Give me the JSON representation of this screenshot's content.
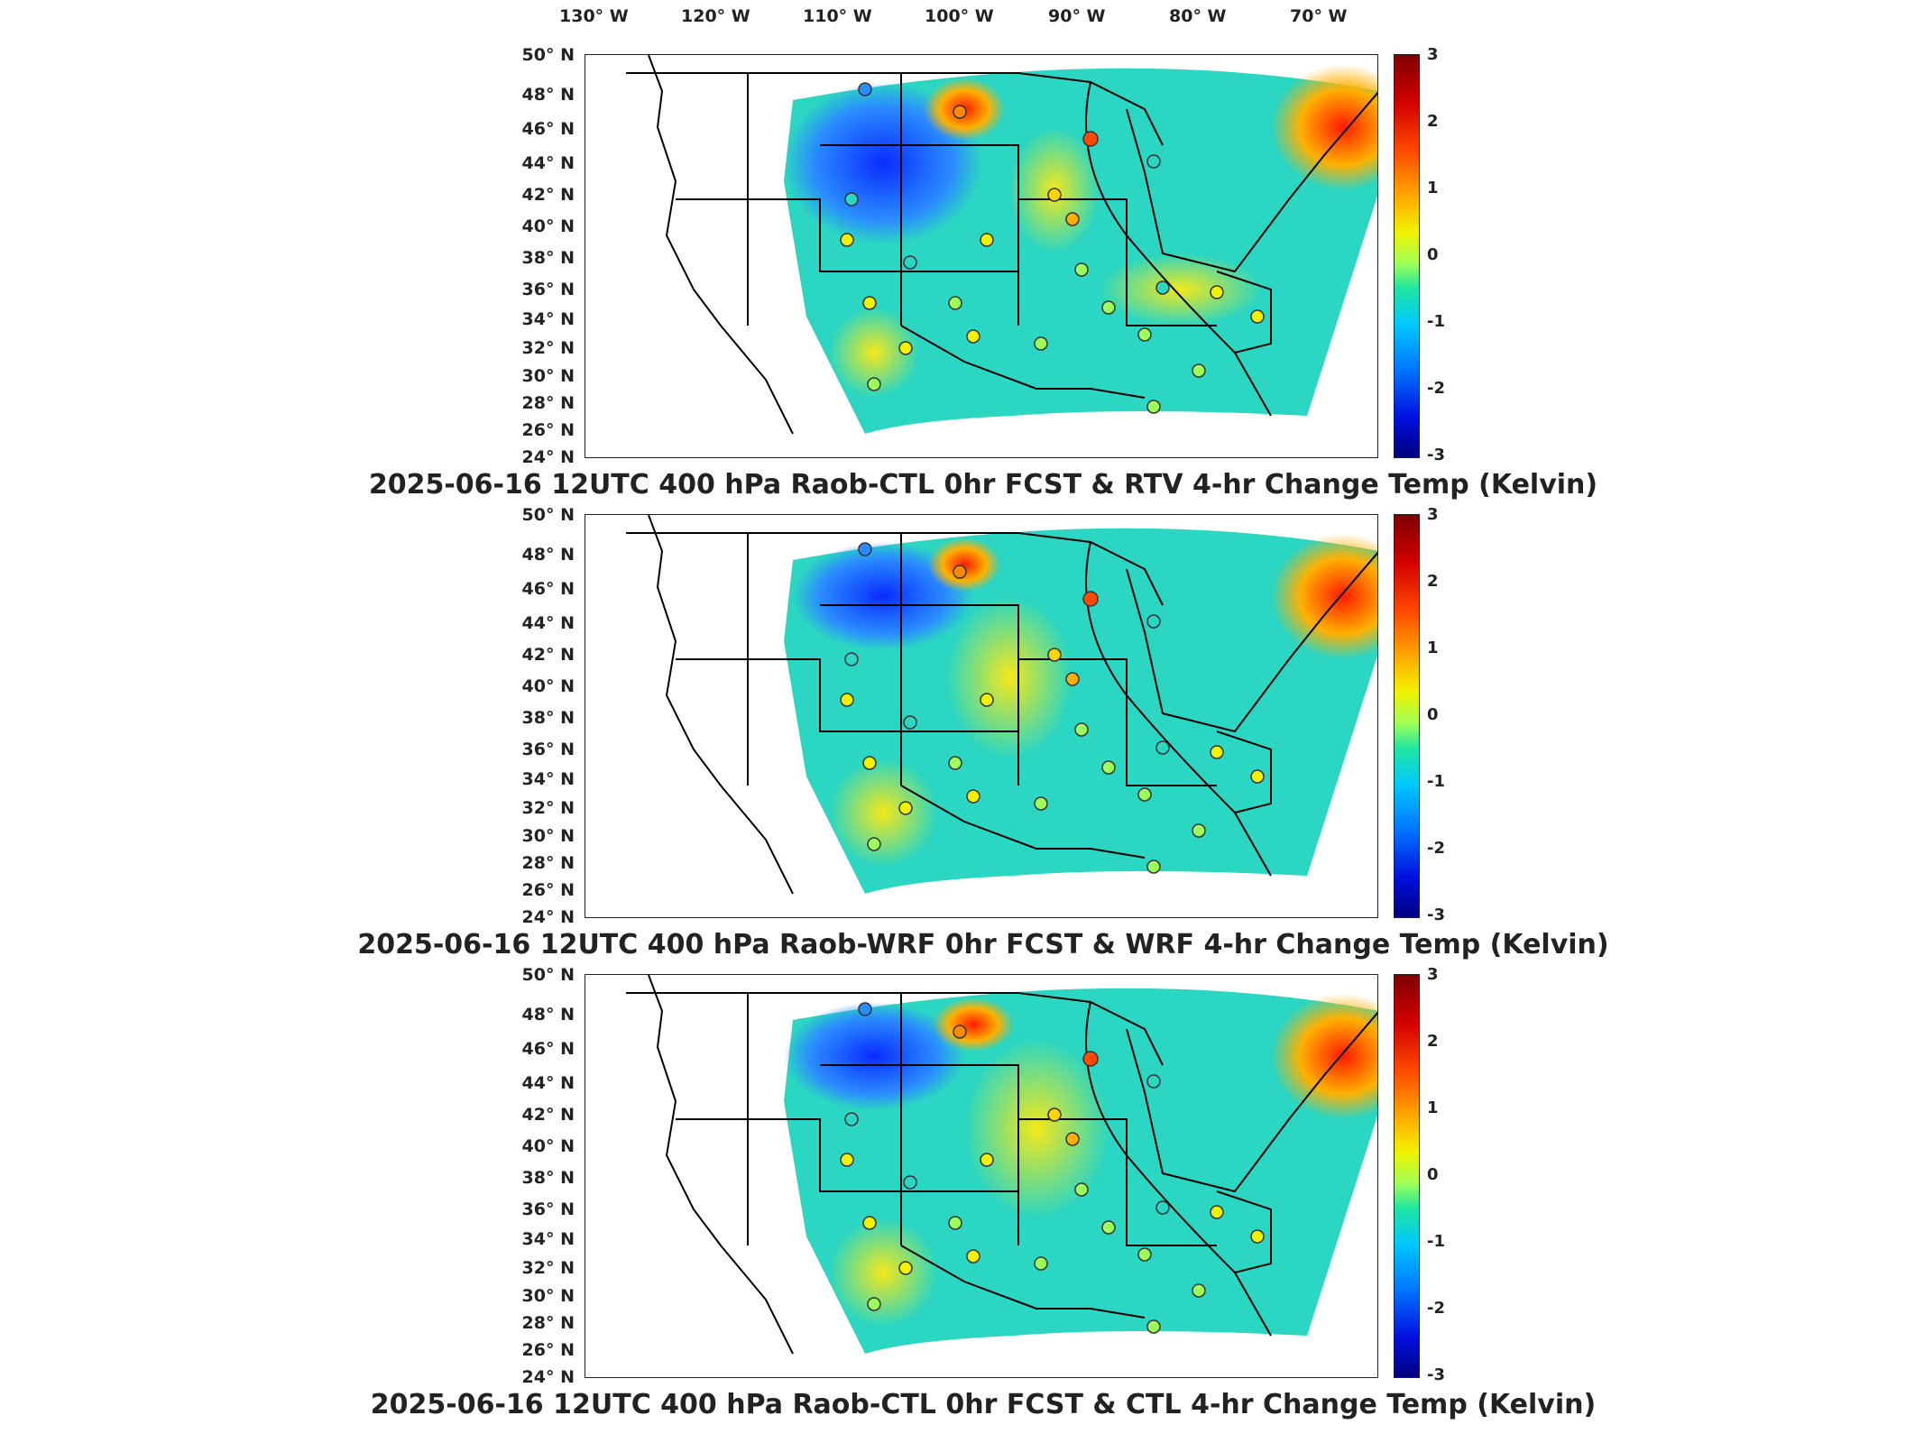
{
  "longitude_labels": [
    "130° W",
    "120° W",
    "110° W",
    "100° W",
    "90° W",
    "80° W",
    "70° W"
  ],
  "latitude_labels": [
    "50° N",
    "48° N",
    "46° N",
    "44° N",
    "42° N",
    "40° N",
    "38° N",
    "36° N",
    "34° N",
    "32° N",
    "30° N",
    "28° N",
    "26° N",
    "24° N"
  ],
  "colorbar": {
    "ticks": [
      "3",
      "2",
      "1",
      "0",
      "-1",
      "-2",
      "-3"
    ],
    "range": [
      -3,
      3
    ],
    "colormap": "jet"
  },
  "panels": [
    {
      "title": "2025-06-16 12UTC 400 hPa Raob-CTL 0hr FCST & RTV 4-hr Change Temp (Kelvin)"
    },
    {
      "title": "2025-06-16 12UTC 400 hPa Raob-WRF 0hr FCST & WRF 4-hr Change Temp (Kelvin)"
    },
    {
      "title": "2025-06-16 12UTC 400 hPa Raob-CTL 0hr FCST & CTL 4-hr Change Temp (Kelvin)"
    }
  ],
  "colors": {
    "field_background": "#2ad3c8",
    "warm_anomaly": "#ff2a00",
    "cold_anomaly": "#1a3bff",
    "outline": "#000000"
  }
}
